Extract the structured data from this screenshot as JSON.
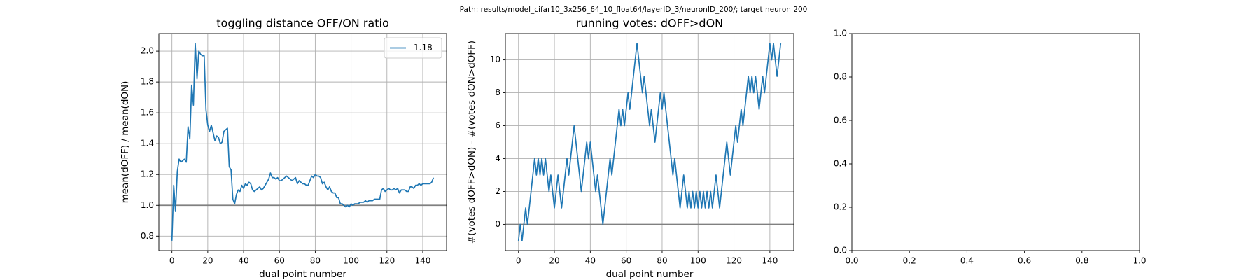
{
  "title": "Path: results/model_cifar10_3x256_64_10_float64/layerID_3/neuronID_200/; target neuron 200",
  "chart_data": [
    {
      "type": "line",
      "title": "toggling distance OFF/ON ratio",
      "xlabel": "dual point number",
      "ylabel": "mean(dOFF) / mean(dON)",
      "x": [
        0,
        1,
        2,
        3,
        4,
        5,
        6,
        7,
        8,
        9,
        10,
        11,
        12,
        13,
        14,
        15,
        16,
        17,
        18,
        19,
        20,
        21,
        22,
        23,
        24,
        25,
        26,
        27,
        28,
        29,
        30,
        31,
        32,
        33,
        34,
        35,
        36,
        37,
        38,
        39,
        40,
        41,
        42,
        43,
        44,
        45,
        46,
        47,
        48,
        49,
        50,
        51,
        52,
        53,
        54,
        55,
        56,
        57,
        58,
        59,
        60,
        61,
        62,
        63,
        64,
        65,
        66,
        67,
        68,
        69,
        70,
        71,
        72,
        73,
        74,
        75,
        76,
        77,
        78,
        79,
        80,
        81,
        82,
        83,
        84,
        85,
        86,
        87,
        88,
        89,
        90,
        91,
        92,
        93,
        94,
        95,
        96,
        97,
        98,
        99,
        100,
        101,
        102,
        103,
        104,
        105,
        106,
        107,
        108,
        109,
        110,
        111,
        112,
        113,
        114,
        115,
        116,
        117,
        118,
        119,
        120,
        121,
        122,
        123,
        124,
        125,
        126,
        127,
        128,
        129,
        130,
        131,
        132,
        133,
        134,
        135,
        136,
        137,
        138,
        139,
        140,
        141,
        142,
        143,
        144,
        145,
        146
      ],
      "series": [
        {
          "name": "1.18",
          "color": "#1f77b4",
          "values": [
            0.77,
            1.13,
            0.96,
            1.22,
            1.3,
            1.28,
            1.29,
            1.3,
            1.28,
            1.51,
            1.43,
            1.78,
            1.65,
            2.05,
            1.82,
            2.0,
            1.98,
            1.97,
            1.97,
            1.62,
            1.52,
            1.48,
            1.52,
            1.47,
            1.42,
            1.45,
            1.44,
            1.4,
            1.41,
            1.48,
            1.49,
            1.5,
            1.25,
            1.23,
            1.04,
            1.01,
            1.07,
            1.1,
            1.09,
            1.13,
            1.11,
            1.14,
            1.13,
            1.15,
            1.14,
            1.1,
            1.09,
            1.1,
            1.11,
            1.12,
            1.1,
            1.11,
            1.13,
            1.15,
            1.17,
            1.21,
            1.18,
            1.18,
            1.17,
            1.18,
            1.16,
            1.16,
            1.17,
            1.18,
            1.19,
            1.18,
            1.17,
            1.16,
            1.17,
            1.18,
            1.14,
            1.16,
            1.15,
            1.14,
            1.14,
            1.13,
            1.13,
            1.16,
            1.19,
            1.18,
            1.2,
            1.19,
            1.19,
            1.18,
            1.14,
            1.15,
            1.12,
            1.1,
            1.12,
            1.09,
            1.08,
            1.08,
            1.05,
            1.05,
            1.01,
            1.01,
            1.0,
            0.99,
            1.0,
            0.99,
            1.01,
            1.0,
            1.01,
            1.01,
            1.01,
            1.02,
            1.02,
            1.02,
            1.03,
            1.02,
            1.03,
            1.03,
            1.03,
            1.04,
            1.04,
            1.04,
            1.04,
            1.1,
            1.11,
            1.09,
            1.1,
            1.11,
            1.1,
            1.1,
            1.11,
            1.1,
            1.11,
            1.08,
            1.1,
            1.1,
            1.1,
            1.09,
            1.09,
            1.12,
            1.12,
            1.11,
            1.13,
            1.13,
            1.14,
            1.13,
            1.14,
            1.14,
            1.14,
            1.14,
            1.14,
            1.15,
            1.18
          ]
        }
      ],
      "axhline": 1,
      "axhline_color": "#808080",
      "xlim": [
        -7.3,
        153.3
      ],
      "xticks": [
        0,
        20,
        40,
        60,
        80,
        100,
        120,
        140
      ],
      "ylim": [
        0.706,
        2.114
      ],
      "yticks": [
        0.8,
        {
          "value": 1,
          "label": "1.0"
        },
        1.2,
        1.4,
        1.6,
        1.8,
        {
          "value": 2,
          "label": "2.0"
        }
      ],
      "grid": true,
      "legend": "upper right"
    },
    {
      "type": "line",
      "title": "running votes: dOFF>dON",
      "xlabel": "dual point number",
      "ylabel": "#(votes dOFF>dON) - #(votes dON>dOFF)",
      "x": [
        0,
        1,
        2,
        3,
        4,
        5,
        6,
        7,
        8,
        9,
        10,
        11,
        12,
        13,
        14,
        15,
        16,
        17,
        18,
        19,
        20,
        21,
        22,
        23,
        24,
        25,
        26,
        27,
        28,
        29,
        30,
        31,
        32,
        33,
        34,
        35,
        36,
        37,
        38,
        39,
        40,
        41,
        42,
        43,
        44,
        45,
        46,
        47,
        48,
        49,
        50,
        51,
        52,
        53,
        54,
        55,
        56,
        57,
        58,
        59,
        60,
        61,
        62,
        63,
        64,
        65,
        66,
        67,
        68,
        69,
        70,
        71,
        72,
        73,
        74,
        75,
        76,
        77,
        78,
        79,
        80,
        81,
        82,
        83,
        84,
        85,
        86,
        87,
        88,
        89,
        90,
        91,
        92,
        93,
        94,
        95,
        96,
        97,
        98,
        99,
        100,
        101,
        102,
        103,
        104,
        105,
        106,
        107,
        108,
        109,
        110,
        111,
        112,
        113,
        114,
        115,
        116,
        117,
        118,
        119,
        120,
        121,
        122,
        123,
        124,
        125,
        126,
        127,
        128,
        129,
        130,
        131,
        132,
        133,
        134,
        135,
        136,
        137,
        138,
        139,
        140,
        141,
        142,
        143,
        144,
        145,
        146
      ],
      "series": [
        {
          "color": "#1f77b4",
          "values": [
            -1,
            0,
            -1,
            0,
            1,
            0,
            1,
            2,
            3,
            4,
            3,
            4,
            3,
            4,
            3,
            4,
            3,
            2,
            3,
            2,
            1,
            2,
            3,
            2,
            1,
            2,
            3,
            4,
            3,
            4,
            5,
            6,
            5,
            4,
            3,
            2,
            3,
            4,
            5,
            4,
            5,
            4,
            3,
            2,
            3,
            2,
            1,
            0,
            1,
            2,
            3,
            4,
            3,
            4,
            5,
            6,
            7,
            6,
            7,
            6,
            7,
            8,
            7,
            8,
            9,
            10,
            11,
            10,
            9,
            8,
            9,
            8,
            7,
            6,
            7,
            6,
            5,
            6,
            7,
            8,
            7,
            8,
            7,
            6,
            5,
            4,
            3,
            4,
            3,
            2,
            1,
            2,
            3,
            2,
            1,
            2,
            1,
            2,
            1,
            2,
            1,
            2,
            1,
            2,
            1,
            2,
            1,
            2,
            1,
            2,
            3,
            2,
            1,
            2,
            3,
            4,
            5,
            4,
            3,
            4,
            5,
            6,
            5,
            6,
            7,
            6,
            7,
            8,
            9,
            8,
            9,
            8,
            9,
            8,
            7,
            8,
            9,
            8,
            9,
            10,
            11,
            10,
            11,
            10,
            9,
            10,
            11
          ]
        }
      ],
      "axhline": 0,
      "axhline_color": "#808080",
      "xlim": [
        -7.3,
        153.3
      ],
      "xticks": [
        0,
        20,
        40,
        60,
        80,
        100,
        120,
        140
      ],
      "ylim": [
        -1.6,
        11.6
      ],
      "yticks": [
        0,
        2,
        4,
        6,
        8,
        10
      ],
      "grid": true
    },
    {
      "type": "line",
      "series": [],
      "xlim": [
        0,
        1
      ],
      "xticks": [
        {
          "value": 0,
          "label": "0.0"
        },
        0.2,
        0.4,
        0.6,
        0.8,
        {
          "value": 1,
          "label": "1.0"
        }
      ],
      "ylim": [
        0,
        1
      ],
      "yticks": [
        {
          "value": 0,
          "label": "0.0"
        },
        0.2,
        0.4,
        0.6,
        0.8,
        {
          "value": 1,
          "label": "1.0"
        }
      ],
      "grid": false
    }
  ]
}
